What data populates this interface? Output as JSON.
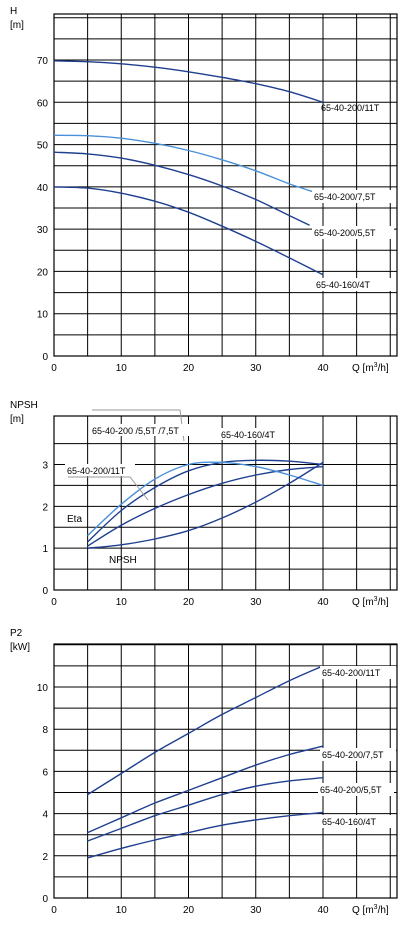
{
  "chart_data": [
    {
      "type": "line",
      "ylabel": "H",
      "yunit": "[m]",
      "xlabel": "Q [m³/h]",
      "xlabel_base": "Q [m",
      "xlabel_sup": "3",
      "xlabel_tail": "/h]",
      "xlim": [
        0,
        44
      ],
      "ylim": [
        0,
        80
      ],
      "xticks": [
        "0",
        "10",
        "20",
        "30",
        "40"
      ],
      "yticks": [
        "0",
        "10",
        "20",
        "30",
        "40",
        "50",
        "60",
        "70"
      ],
      "series": [
        {
          "name": "65-40-200/11T",
          "x": [
            0,
            5,
            10,
            15,
            20,
            25,
            30,
            35,
            40
          ],
          "y": [
            69.8,
            69.6,
            69.1,
            68.3,
            67.2,
            65.9,
            64.4,
            62.5,
            60.0
          ]
        },
        {
          "name": "65-40-200/7,5T",
          "x": [
            0,
            5,
            10,
            15,
            20,
            25,
            30,
            35,
            39
          ],
          "y": [
            52.2,
            52.1,
            51.5,
            50.3,
            48.6,
            46.4,
            43.8,
            40.7,
            38.6
          ]
        },
        {
          "name": "65-40-200/5,5T",
          "x": [
            0,
            5,
            10,
            15,
            20,
            25,
            30,
            35,
            38
          ],
          "y": [
            48.2,
            47.8,
            46.8,
            45.1,
            42.9,
            40.2,
            37.0,
            33.2,
            30.9
          ]
        },
        {
          "name": "65-40-160/4T",
          "x": [
            0,
            5,
            10,
            15,
            20,
            25,
            30,
            35,
            40
          ],
          "y": [
            40.0,
            39.7,
            38.5,
            36.6,
            34.0,
            30.7,
            27.1,
            23.2,
            19.2
          ]
        }
      ]
    },
    {
      "type": "line",
      "ylabel": "NPSH",
      "yunit": "[m]",
      "xlabel": "Q [m³/h]",
      "xlabel_base": "Q [m",
      "xlabel_sup": "3",
      "xlabel_tail": "/h]",
      "xlim": [
        0,
        44
      ],
      "ylim": [
        0,
        3.6
      ],
      "xticks": [
        "0",
        "10",
        "20",
        "30",
        "40"
      ],
      "yticks": [
        "0",
        "1",
        "2",
        "3"
      ],
      "annotations": [
        "Eta",
        "NPSH"
      ],
      "series": [
        {
          "name": "65-40-200/11T",
          "x": [
            5,
            10,
            15,
            20,
            25,
            30,
            35,
            40
          ],
          "y": [
            1.05,
            1.55,
            1.95,
            2.28,
            2.55,
            2.75,
            2.88,
            2.95
          ]
        },
        {
          "name": "65-40-200 /5,5T /7,5T",
          "x": [
            5,
            10,
            15,
            20,
            25,
            30,
            35,
            40
          ],
          "y": [
            1.15,
            1.9,
            2.45,
            2.85,
            3.05,
            3.1,
            3.08,
            3.0
          ]
        },
        {
          "name": "65-40-160/4T",
          "x": [
            5,
            10,
            15,
            20,
            25,
            30,
            35,
            40
          ],
          "y": [
            1.3,
            2.05,
            2.65,
            3.0,
            3.05,
            2.95,
            2.75,
            2.5
          ]
        },
        {
          "name": "NPSH",
          "x": [
            5,
            10,
            15,
            20,
            25,
            30,
            35,
            40
          ],
          "y": [
            1.0,
            1.08,
            1.22,
            1.42,
            1.72,
            2.1,
            2.55,
            3.05
          ]
        }
      ],
      "label_texts": {
        "s1": "65-40-200/11T",
        "s2": "65-40-200 /5,5T /7,5T",
        "s3": "65-40-160/4T",
        "eta": "Eta",
        "npsh": "NPSH"
      }
    },
    {
      "type": "line",
      "ylabel": "P2",
      "yunit": "[kW]",
      "xlabel": "Q [m³/h]",
      "xlabel_base": "Q [m",
      "xlabel_sup": "3",
      "xlabel_tail": "/h]",
      "xlim": [
        0,
        44
      ],
      "ylim": [
        0,
        12
      ],
      "xticks": [
        "0",
        "10",
        "20",
        "30",
        "40"
      ],
      "yticks": [
        "0",
        "2",
        "4",
        "6",
        "8",
        "10"
      ],
      "series": [
        {
          "name": "65-40-200/11T",
          "x": [
            5,
            10,
            15,
            20,
            25,
            30,
            35,
            40
          ],
          "y": [
            4.9,
            5.9,
            6.9,
            7.8,
            8.7,
            9.5,
            10.3,
            11.0
          ]
        },
        {
          "name": "65-40-200/7,5T",
          "x": [
            5,
            10,
            15,
            20,
            25,
            30,
            35,
            40
          ],
          "y": [
            3.1,
            3.8,
            4.5,
            5.1,
            5.7,
            6.3,
            6.8,
            7.2
          ]
        },
        {
          "name": "65-40-200/5,5T",
          "x": [
            5,
            10,
            15,
            20,
            25,
            30,
            35,
            40
          ],
          "y": [
            2.7,
            3.3,
            3.9,
            4.4,
            4.9,
            5.3,
            5.55,
            5.7
          ]
        },
        {
          "name": "65-40-160/4T",
          "x": [
            5,
            10,
            15,
            20,
            25,
            30,
            35,
            40
          ],
          "y": [
            1.9,
            2.35,
            2.75,
            3.1,
            3.45,
            3.7,
            3.9,
            4.05
          ]
        }
      ]
    }
  ],
  "colors": {
    "curve_dark": "#1f3f8f",
    "curve_light": "#4a90d8",
    "grid": "#000000",
    "leader": "#999999"
  }
}
